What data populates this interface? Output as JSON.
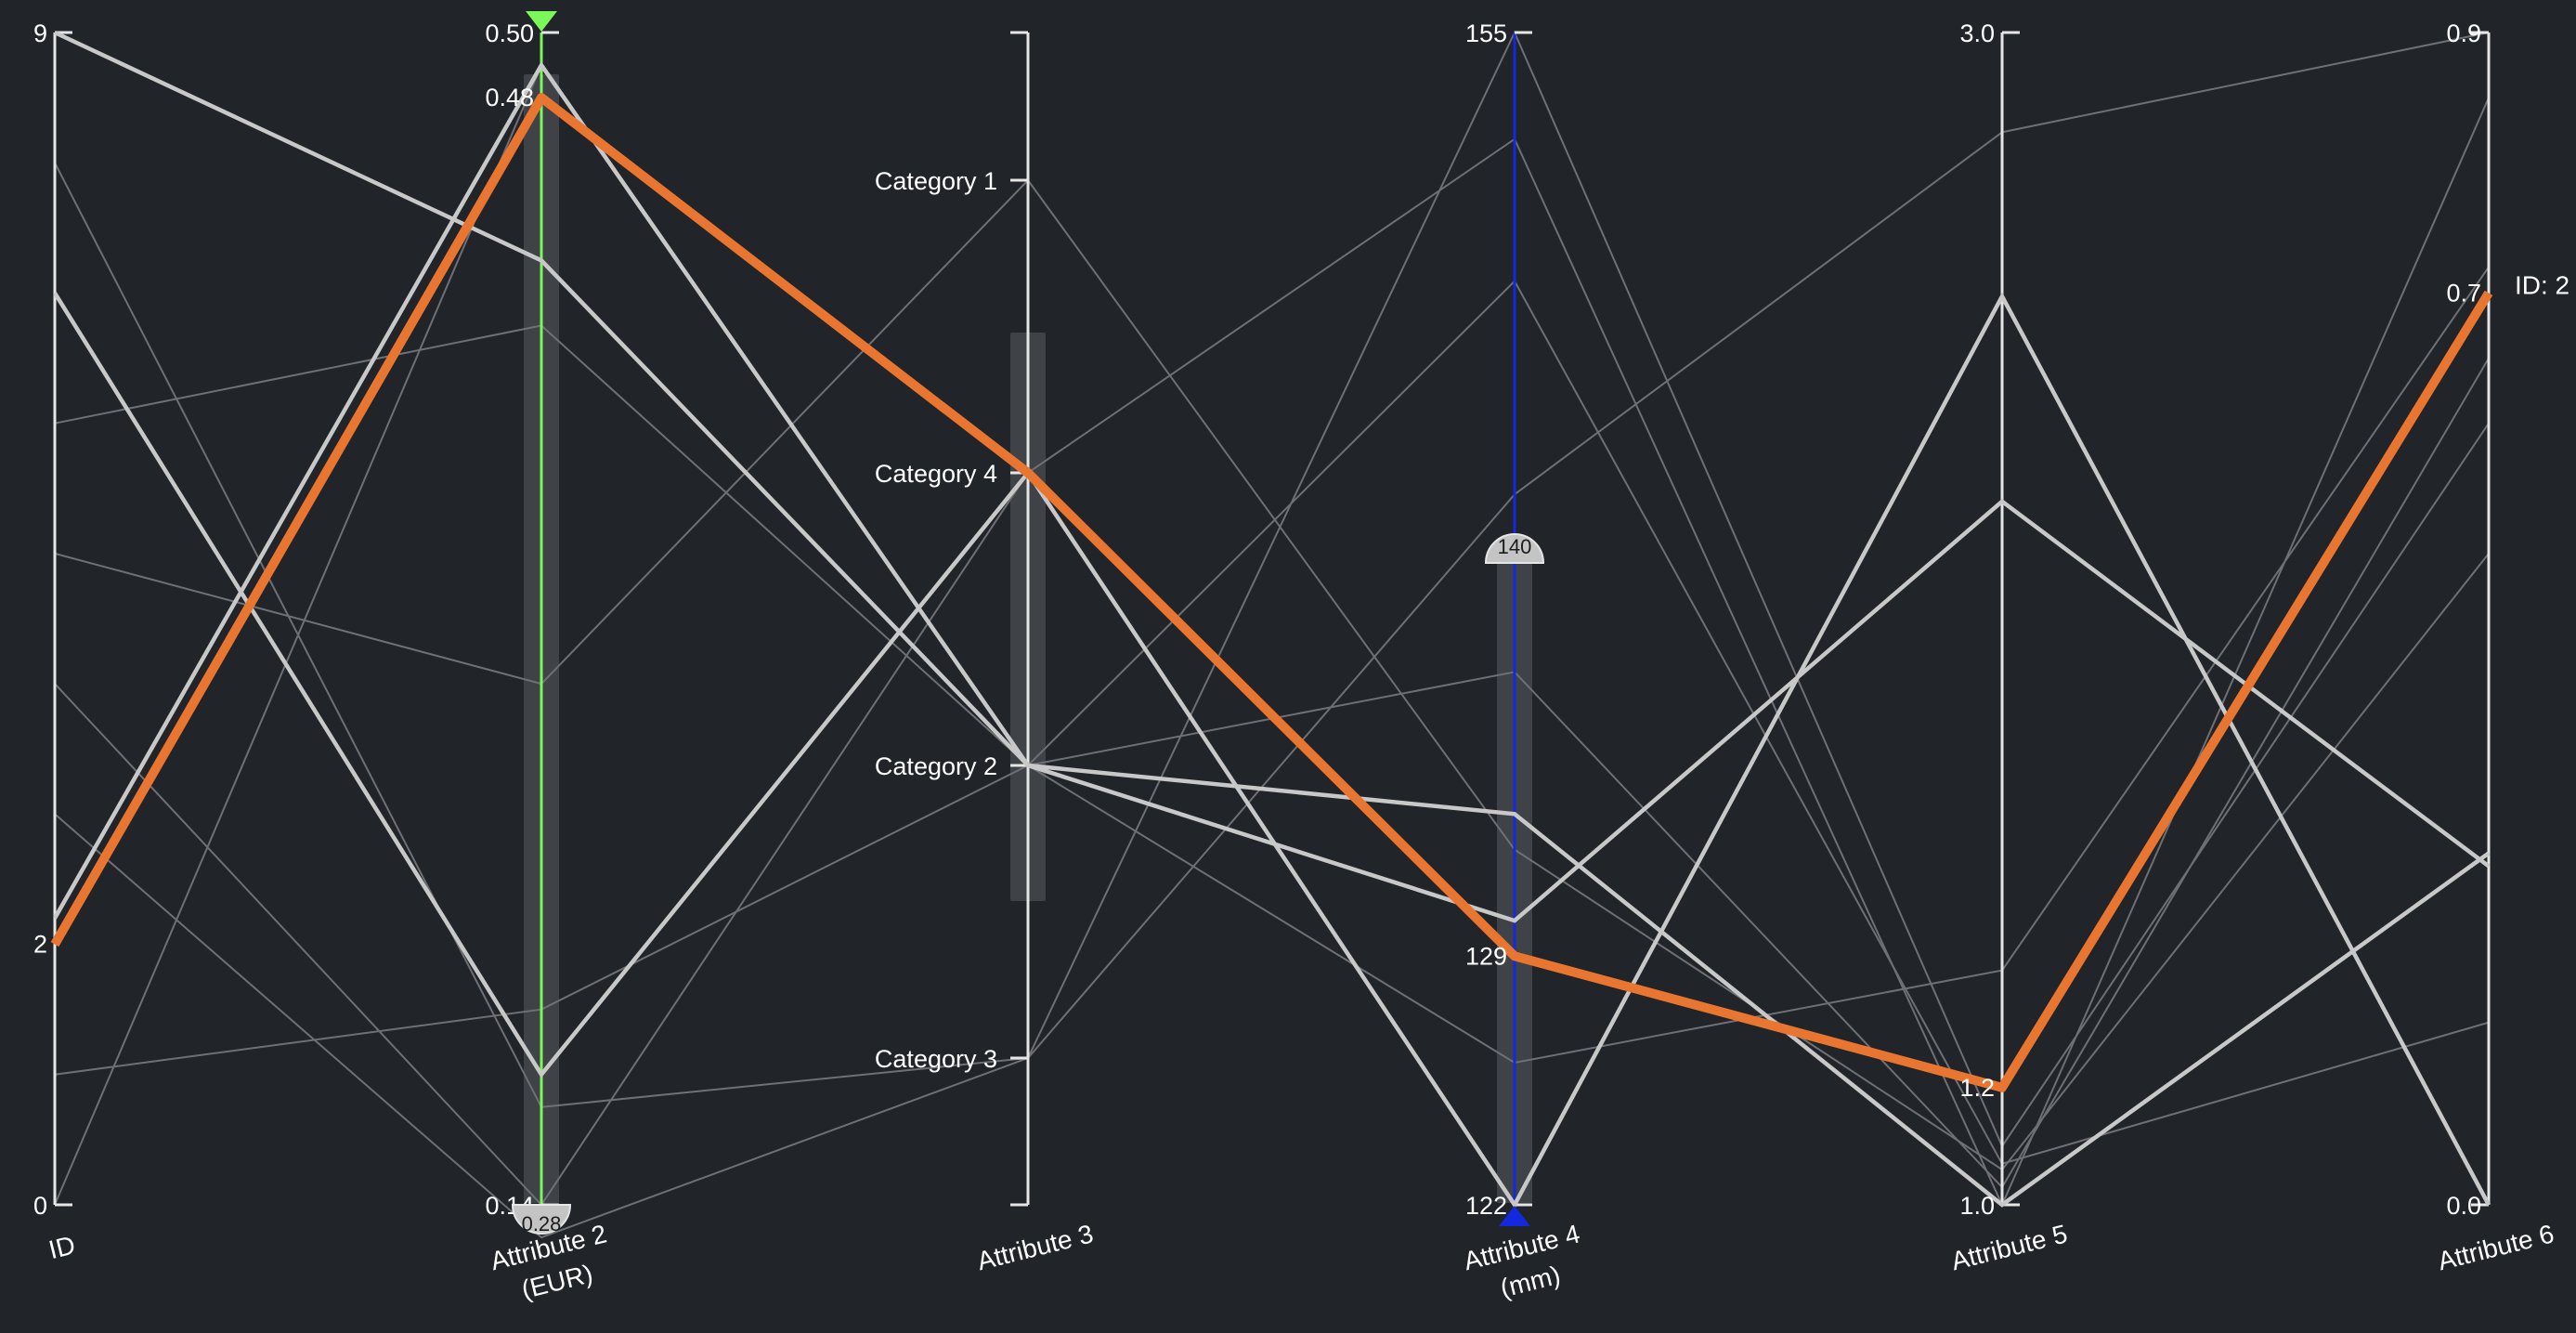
{
  "chart_data": {
    "type": "parallel-coordinates",
    "axes": [
      {
        "key": "id",
        "label": [
          "ID"
        ],
        "type": "numeric",
        "range": [
          0,
          9
        ],
        "tick_labels": [
          "9",
          "0"
        ],
        "extra_tick_labels": [
          "2"
        ]
      },
      {
        "key": "a2",
        "label": [
          "Attribute 2",
          "(EUR)"
        ],
        "type": "numeric",
        "range": [
          0.14,
          0.5
        ],
        "tick_labels": [
          "0.50",
          "0.14"
        ],
        "extra_tick_labels": [
          "0.48"
        ],
        "filter": {
          "range": [
            0.14,
            0.5
          ],
          "handle_label": "0.28",
          "color": "#7cf75a"
        }
      },
      {
        "key": "a3",
        "label": [
          "Attribute 3"
        ],
        "type": "categorical",
        "categories": [
          "Category 1",
          "Category 4",
          "Category 2",
          "Category 3"
        ]
      },
      {
        "key": "a4",
        "label": [
          "Attribute 4",
          "(mm)"
        ],
        "type": "numeric",
        "range": [
          122,
          155
        ],
        "tick_labels": [
          "155",
          "122"
        ],
        "extra_tick_labels": [
          "129"
        ],
        "filter": {
          "range": [
            122,
            155
          ],
          "handle_label": "140",
          "color": "#1428e0"
        }
      },
      {
        "key": "a5",
        "label": [
          "Attribute 5"
        ],
        "type": "numeric",
        "range": [
          1.0,
          3.0
        ],
        "tick_labels": [
          "3.0",
          "1.0"
        ],
        "extra_tick_labels": [
          "1.2"
        ]
      },
      {
        "key": "a6",
        "label": [
          "Attribute 6"
        ],
        "type": "numeric",
        "range": [
          0.0,
          0.9
        ],
        "tick_labels": [
          "0.9",
          "0.0"
        ],
        "extra_tick_labels": [
          "0.7"
        ]
      }
    ],
    "highlight": {
      "label": "ID: 2",
      "values": {
        "id": 2,
        "a2": 0.48,
        "a3": "Category 4",
        "a4": 129,
        "a5": 1.2,
        "a6": 0.7
      }
    },
    "foreground_records": [
      {
        "id": 2.2,
        "a2": 0.49,
        "a3": "Category 2",
        "a4": 130,
        "a5": 2.2,
        "a6": 0.26
      },
      {
        "id": 7.0,
        "a2": 0.18,
        "a3": "Category 4",
        "a4": 122,
        "a5": 2.55,
        "a6": 0.0
      },
      {
        "id": 9.0,
        "a2": 0.43,
        "a3": "Category 2",
        "a4": 133,
        "a5": 1.0,
        "a6": 0.27
      }
    ],
    "background_records": [
      {
        "id": 8.0,
        "a2": 0.17,
        "a3": "Category 3",
        "a4": 142,
        "a5": 2.83,
        "a6": 0.9
      },
      {
        "id": 6.0,
        "a2": 0.41,
        "a3": "Category 2",
        "a4": 148,
        "a5": 1.07,
        "a6": 0.14
      },
      {
        "id": 5.0,
        "a2": 0.3,
        "a3": "Category 1",
        "a4": 132,
        "a5": 1.06,
        "a6": 0.5
      },
      {
        "id": 4.0,
        "a2": 0.14,
        "a3": "Category 4",
        "a4": 152,
        "a5": 1.0,
        "a6": 0.85
      },
      {
        "id": 0.0,
        "a2": 0.49,
        "a3": "Category 2",
        "a4": 137,
        "a5": 1.03,
        "a6": 0.65
      },
      {
        "id": 1.0,
        "a2": 0.2,
        "a3": "Category 2",
        "a4": 126,
        "a5": 1.4,
        "a6": 0.72
      },
      {
        "id": 3.0,
        "a2": 0.13,
        "a3": "Category 3",
        "a4": 155,
        "a5": 1.1,
        "a6": 0.6
      }
    ],
    "colors": {
      "background": "#212429",
      "highlight": "#e87530",
      "foreground": "#c8c8c8",
      "context": "#6e7076"
    }
  }
}
